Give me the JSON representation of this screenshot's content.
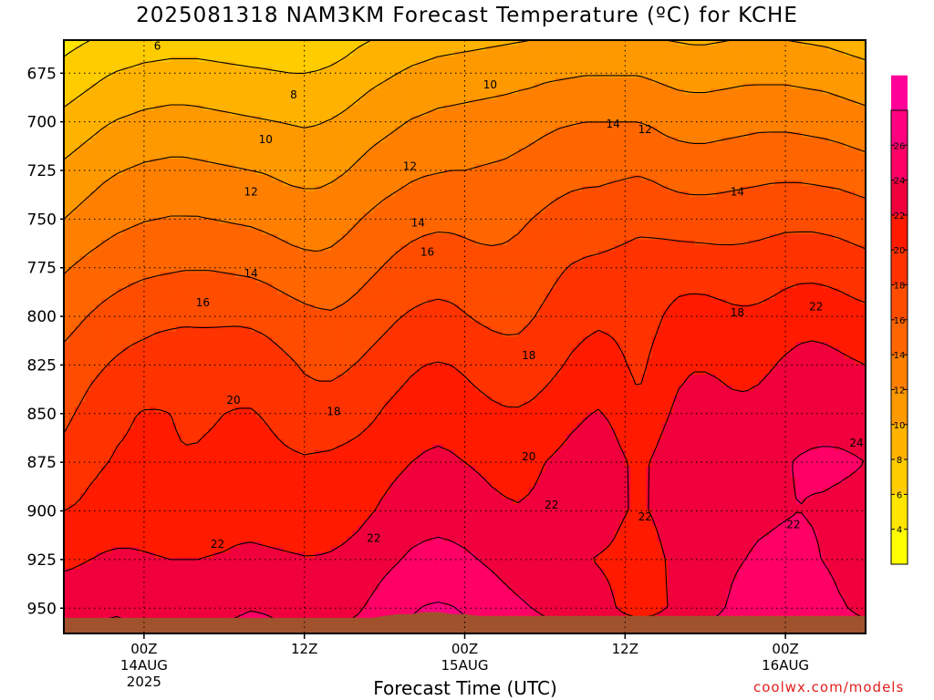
{
  "title": "2025081318 NAM3KM Forecast Temperature (ºC) for KCHE",
  "xlabel": "Forecast Time (UTC)",
  "credit": "coolwx.com/models",
  "colors": {
    "ground": "#a0522d",
    "contour": "#000000",
    "levels": [
      "#ffff00",
      "#ffe600",
      "#ffcc00",
      "#ffb300",
      "#ff9900",
      "#ff8000",
      "#ff6600",
      "#ff4d00",
      "#ff3300",
      "#ff1a00",
      "#f0003c",
      "#ff0066",
      "#ff0080",
      "#ff0099"
    ]
  },
  "chart_data": {
    "type": "heatmap",
    "title": "2025081318 NAM3KM Forecast Temperature (ºC) for KCHE",
    "xlabel": "Forecast Time (UTC)",
    "ylabel": "",
    "x_ticks": [
      {
        "label": "00Z",
        "sub": [
          "14AUG",
          "2025"
        ],
        "hour": 6
      },
      {
        "label": "12Z",
        "sub": [],
        "hour": 18
      },
      {
        "label": "00Z",
        "sub": [
          "15AUG"
        ],
        "hour": 30
      },
      {
        "label": "12Z",
        "sub": [],
        "hour": 42
      },
      {
        "label": "00Z",
        "sub": [
          "16AUG"
        ],
        "hour": 54
      }
    ],
    "xlim": [
      0,
      60
    ],
    "y_ticks": [
      675,
      700,
      725,
      750,
      775,
      800,
      825,
      850,
      875,
      900,
      925,
      950
    ],
    "ylim": [
      658,
      963
    ],
    "y_inverted": true,
    "colorbar_ticks": [
      4,
      6,
      8,
      10,
      12,
      14,
      16,
      18,
      20,
      22,
      24,
      26
    ],
    "colorbar_range": [
      2,
      28
    ],
    "contour_interval": 2,
    "contour_labels": [
      {
        "value": "6",
        "hour": 7,
        "p": 661
      },
      {
        "value": "8",
        "hour": 17.2,
        "p": 686
      },
      {
        "value": "10",
        "hour": 15.1,
        "p": 709
      },
      {
        "value": "10",
        "hour": 31.9,
        "p": 681
      },
      {
        "value": "12",
        "hour": 14,
        "p": 736
      },
      {
        "value": "12",
        "hour": 25.9,
        "p": 723
      },
      {
        "value": "12",
        "hour": 43.5,
        "p": 704
      },
      {
        "value": "14",
        "hour": 14,
        "p": 778
      },
      {
        "value": "14",
        "hour": 26.5,
        "p": 752
      },
      {
        "value": "14",
        "hour": 41.1,
        "p": 701
      },
      {
        "value": "14",
        "hour": 50.4,
        "p": 736
      },
      {
        "value": "16",
        "hour": 10.4,
        "p": 793
      },
      {
        "value": "16",
        "hour": 27.2,
        "p": 767
      },
      {
        "value": "18",
        "hour": 20.2,
        "p": 849
      },
      {
        "value": "18",
        "hour": 34.8,
        "p": 820
      },
      {
        "value": "18",
        "hour": 50.4,
        "p": 798
      },
      {
        "value": "20",
        "hour": 12.7,
        "p": 843
      },
      {
        "value": "20",
        "hour": 34.8,
        "p": 872
      },
      {
        "value": "22",
        "hour": 11.5,
        "p": 917
      },
      {
        "value": "22",
        "hour": 23.2,
        "p": 914
      },
      {
        "value": "22",
        "hour": 36.5,
        "p": 897
      },
      {
        "value": "22",
        "hour": 43.5,
        "p": 903
      },
      {
        "value": "22",
        "hour": 54.6,
        "p": 907
      },
      {
        "value": "22",
        "hour": 56.3,
        "p": 795
      },
      {
        "value": "24",
        "hour": 60,
        "p": 865
      }
    ],
    "series": [
      {
        "p": 963,
        "values": [
          24.0,
          24.0,
          24.3,
          24.5,
          24.6,
          24.4,
          24.2,
          24.1,
          24.0,
          24.0,
          24.0,
          24.1,
          24.3,
          24.6,
          24.8,
          24.7,
          24.4,
          24.2,
          24.1,
          24.0,
          24.1,
          24.3,
          24.6,
          25.0,
          25.6,
          26.0,
          26.4,
          26.7,
          26.9,
          26.8,
          26.5,
          26.1,
          25.7,
          25.4,
          25.1,
          24.9,
          24.6,
          24.3,
          24.1,
          24.0,
          23.8,
          23.6,
          23.4,
          23.3,
          23.4,
          23.6,
          23.8,
          24.0,
          24.3,
          24.6,
          24.9,
          25.2,
          25.5,
          25.8,
          26.0,
          26.0,
          25.7,
          25.3,
          24.9,
          24.6,
          24.4
        ]
      },
      {
        "p": 950,
        "values": [
          23.2,
          23.2,
          23.4,
          23.6,
          23.7,
          23.5,
          23.4,
          23.3,
          23.2,
          23.2,
          23.2,
          23.3,
          23.5,
          23.7,
          23.9,
          23.8,
          23.6,
          23.4,
          23.3,
          23.2,
          23.3,
          23.5,
          23.8,
          24.3,
          24.9,
          25.4,
          25.8,
          26.1,
          26.2,
          26.1,
          25.8,
          25.4,
          25.0,
          24.6,
          24.3,
          24.0,
          23.7,
          23.4,
          23.1,
          22.9,
          22.6,
          22.2,
          21.6,
          21.2,
          21.4,
          21.9,
          22.4,
          22.9,
          23.4,
          23.8,
          24.2,
          24.6,
          24.9,
          25.2,
          25.4,
          25.4,
          25.1,
          24.7,
          24.2,
          23.9,
          23.7
        ]
      },
      {
        "p": 925,
        "values": [
          21.6,
          21.8,
          22.0,
          22.2,
          22.3,
          22.3,
          22.2,
          22.1,
          22.0,
          22.0,
          22.0,
          22.1,
          22.2,
          22.4,
          22.5,
          22.4,
          22.3,
          22.2,
          22.1,
          22.1,
          22.2,
          22.4,
          22.7,
          23.1,
          23.5,
          23.9,
          24.3,
          24.5,
          24.6,
          24.5,
          24.3,
          24.0,
          23.7,
          23.4,
          23.1,
          22.9,
          22.7,
          22.5,
          22.3,
          22.1,
          21.9,
          21.7,
          21.2,
          20.8,
          21.3,
          22.0,
          22.6,
          23.0,
          23.3,
          23.5,
          23.8,
          24.0,
          24.2,
          24.3,
          24.4,
          24.4,
          24.2,
          23.9,
          23.6,
          23.4,
          23.2
        ]
      },
      {
        "p": 900,
        "values": [
          20.0,
          20.2,
          20.6,
          20.9,
          21.0,
          21.0,
          21.0,
          20.9,
          20.8,
          20.8,
          20.8,
          20.9,
          21.0,
          21.1,
          21.1,
          21.0,
          20.9,
          20.8,
          20.8,
          20.9,
          21.0,
          21.2,
          21.5,
          21.9,
          22.3,
          22.7,
          23.0,
          23.2,
          23.3,
          23.2,
          23.0,
          22.7,
          22.4,
          22.2,
          22.1,
          22.2,
          22.4,
          22.6,
          22.7,
          22.8,
          22.9,
          22.6,
          22.1,
          21.7,
          22.1,
          22.6,
          23.0,
          23.2,
          23.3,
          23.4,
          23.5,
          23.6,
          23.7,
          23.8,
          23.9,
          24.0,
          23.9,
          23.8,
          23.6,
          23.4,
          23.2
        ]
      },
      {
        "p": 875,
        "values": [
          18.6,
          19.0,
          19.5,
          19.9,
          20.2,
          20.3,
          20.4,
          20.3,
          20.2,
          20.1,
          20.2,
          20.4,
          20.6,
          20.7,
          20.7,
          20.6,
          20.4,
          20.3,
          20.2,
          20.3,
          20.4,
          20.6,
          20.8,
          21.1,
          21.4,
          21.7,
          22.0,
          22.2,
          22.3,
          22.2,
          22.0,
          21.8,
          21.6,
          21.5,
          21.5,
          21.7,
          22.0,
          22.3,
          22.6,
          22.8,
          22.9,
          22.6,
          22.1,
          21.6,
          22.1,
          22.7,
          23.1,
          23.3,
          23.3,
          23.2,
          23.1,
          23.1,
          23.3,
          23.6,
          23.9,
          24.1,
          24.2,
          24.3,
          24.3,
          24.2,
          24.0
        ]
      },
      {
        "p": 850,
        "values": [
          17.6,
          18.1,
          18.7,
          19.2,
          19.6,
          19.9,
          20.1,
          20.1,
          20.0,
          19.8,
          19.7,
          19.8,
          20.0,
          20.1,
          20.1,
          19.9,
          19.6,
          19.2,
          18.9,
          18.8,
          18.8,
          19.0,
          19.3,
          19.7,
          20.2,
          20.6,
          21.0,
          21.3,
          21.4,
          21.3,
          21.0,
          20.7,
          20.4,
          20.2,
          20.2,
          20.4,
          20.8,
          21.2,
          21.6,
          21.9,
          22.1,
          21.8,
          21.2,
          20.4,
          21.1,
          21.8,
          22.4,
          22.6,
          22.6,
          22.5,
          22.4,
          22.4,
          22.6,
          22.9,
          23.2,
          23.4,
          23.5,
          23.4,
          23.3,
          23.1,
          22.9
        ]
      },
      {
        "p": 825,
        "values": [
          16.6,
          17.0,
          17.5,
          17.9,
          18.3,
          18.6,
          18.8,
          19.0,
          19.1,
          19.1,
          19.0,
          19.0,
          19.1,
          19.2,
          19.2,
          19.0,
          18.6,
          18.2,
          17.8,
          17.6,
          17.6,
          17.8,
          18.1,
          18.5,
          18.9,
          19.3,
          19.7,
          20.0,
          20.1,
          20.0,
          19.7,
          19.3,
          19.0,
          18.8,
          18.7,
          18.9,
          19.3,
          19.8,
          20.3,
          20.7,
          21.0,
          20.7,
          20.1,
          19.5,
          20.3,
          21.0,
          21.6,
          21.9,
          21.9,
          21.8,
          21.6,
          21.5,
          21.6,
          21.9,
          22.3,
          22.6,
          22.7,
          22.6,
          22.4,
          22.2,
          22.0
        ]
      },
      {
        "p": 800,
        "values": [
          15.3,
          15.7,
          16.1,
          16.5,
          16.8,
          17.1,
          17.3,
          17.5,
          17.6,
          17.7,
          17.7,
          17.7,
          17.7,
          17.7,
          17.6,
          17.4,
          17.1,
          16.8,
          16.5,
          16.3,
          16.2,
          16.4,
          16.7,
          17.1,
          17.5,
          17.9,
          18.2,
          18.4,
          18.5,
          18.4,
          18.1,
          17.8,
          17.6,
          17.5,
          17.6,
          17.9,
          18.3,
          18.7,
          19.1,
          19.4,
          19.6,
          19.5,
          19.3,
          19.0,
          19.5,
          20.1,
          20.6,
          20.8,
          20.8,
          20.6,
          20.4,
          20.3,
          20.4,
          20.6,
          20.9,
          21.2,
          21.3,
          21.2,
          21.0,
          20.7,
          20.5
        ]
      },
      {
        "p": 775,
        "values": [
          13.8,
          14.2,
          14.6,
          14.9,
          15.2,
          15.4,
          15.6,
          15.7,
          15.8,
          15.9,
          15.9,
          15.9,
          15.8,
          15.7,
          15.6,
          15.4,
          15.1,
          14.8,
          14.6,
          14.5,
          14.6,
          14.9,
          15.3,
          15.7,
          16.1,
          16.5,
          16.8,
          17.0,
          17.1,
          17.0,
          16.8,
          16.6,
          16.5,
          16.5,
          16.7,
          17.0,
          17.4,
          17.8,
          18.1,
          18.3,
          18.4,
          18.5,
          18.6,
          18.7,
          18.8,
          19.0,
          19.1,
          19.1,
          19.0,
          18.9,
          18.8,
          18.8,
          18.9,
          19.1,
          19.3,
          19.4,
          19.4,
          19.3,
          19.1,
          18.9,
          18.7
        ]
      },
      {
        "p": 750,
        "values": [
          12.0,
          12.4,
          12.8,
          13.2,
          13.5,
          13.7,
          13.9,
          14.0,
          14.1,
          14.1,
          14.1,
          14.0,
          13.9,
          13.8,
          13.7,
          13.5,
          13.3,
          13.1,
          13.0,
          13.0,
          13.2,
          13.5,
          13.9,
          14.3,
          14.7,
          15.0,
          15.3,
          15.5,
          15.6,
          15.6,
          15.5,
          15.4,
          15.4,
          15.5,
          15.7,
          16.0,
          16.3,
          16.6,
          16.8,
          16.9,
          17.0,
          17.2,
          17.4,
          17.6,
          17.5,
          17.3,
          17.1,
          17.0,
          17.0,
          17.0,
          17.1,
          17.2,
          17.3,
          17.4,
          17.5,
          17.5,
          17.5,
          17.4,
          17.3,
          17.1,
          16.9
        ]
      },
      {
        "p": 725,
        "values": [
          10.4,
          10.8,
          11.2,
          11.6,
          11.9,
          12.1,
          12.3,
          12.4,
          12.5,
          12.5,
          12.4,
          12.3,
          12.2,
          12.1,
          12.0,
          11.9,
          11.7,
          11.5,
          11.4,
          11.4,
          11.6,
          11.9,
          12.3,
          12.7,
          13.0,
          13.3,
          13.6,
          13.8,
          13.9,
          14.0,
          14.0,
          14.1,
          14.2,
          14.3,
          14.5,
          14.7,
          15.0,
          15.2,
          15.4,
          15.5,
          15.5,
          15.6,
          15.7,
          15.8,
          15.6,
          15.3,
          15.1,
          15.0,
          15.0,
          15.1,
          15.2,
          15.3,
          15.4,
          15.5,
          15.5,
          15.5,
          15.4,
          15.3,
          15.2,
          15.0,
          14.8
        ]
      },
      {
        "p": 700,
        "values": [
          8.6,
          9.0,
          9.4,
          9.8,
          10.1,
          10.3,
          10.5,
          10.6,
          10.7,
          10.7,
          10.6,
          10.5,
          10.4,
          10.3,
          10.2,
          10.1,
          10.0,
          9.9,
          9.8,
          9.9,
          10.1,
          10.4,
          10.8,
          11.2,
          11.5,
          11.8,
          12.1,
          12.3,
          12.5,
          12.6,
          12.7,
          12.8,
          12.9,
          13.0,
          13.2,
          13.4,
          13.6,
          13.8,
          13.9,
          14.0,
          14.0,
          14.0,
          14.0,
          14.0,
          13.8,
          13.5,
          13.3,
          13.2,
          13.2,
          13.3,
          13.4,
          13.5,
          13.6,
          13.6,
          13.6,
          13.5,
          13.4,
          13.3,
          13.1,
          12.9,
          12.7
        ]
      },
      {
        "p": 675,
        "values": [
          6.6,
          7.0,
          7.4,
          7.8,
          8.1,
          8.3,
          8.5,
          8.6,
          8.7,
          8.7,
          8.7,
          8.6,
          8.5,
          8.4,
          8.3,
          8.2,
          8.1,
          8.0,
          8.0,
          8.1,
          8.3,
          8.6,
          9.0,
          9.4,
          9.7,
          10.0,
          10.3,
          10.5,
          10.7,
          10.8,
          10.9,
          11.0,
          11.1,
          11.2,
          11.3,
          11.4,
          11.6,
          11.7,
          11.8,
          11.9,
          11.9,
          11.9,
          11.9,
          11.9,
          11.7,
          11.5,
          11.3,
          11.2,
          11.2,
          11.3,
          11.4,
          11.5,
          11.5,
          11.5,
          11.5,
          11.4,
          11.3,
          11.2,
          11.0,
          10.8,
          10.6
        ]
      },
      {
        "p": 658,
        "values": [
          5.4,
          5.7,
          6.0,
          6.3,
          6.5,
          6.7,
          6.9,
          7.0,
          7.1,
          7.1,
          7.1,
          7.0,
          6.9,
          6.8,
          6.7,
          6.7,
          6.6,
          6.6,
          6.6,
          6.8,
          7.0,
          7.3,
          7.7,
          8.0,
          8.3,
          8.6,
          8.9,
          9.1,
          9.3,
          9.4,
          9.5,
          9.6,
          9.7,
          9.8,
          9.9,
          10.0,
          10.1,
          10.2,
          10.3,
          10.3,
          10.3,
          10.3,
          10.3,
          10.3,
          10.2,
          10.0,
          9.9,
          9.8,
          9.8,
          9.9,
          10.0,
          10.1,
          10.1,
          10.1,
          10.0,
          9.9,
          9.8,
          9.7,
          9.5,
          9.3,
          9.1
        ]
      }
    ],
    "ground_level_hpa": [
      955,
      955,
      955,
      955,
      955,
      955,
      955,
      955,
      955,
      955,
      955,
      955,
      955,
      955,
      955,
      955,
      955,
      955,
      955,
      955,
      955,
      955,
      955,
      955,
      954,
      953,
      953,
      952,
      952,
      953,
      953,
      954,
      954,
      954,
      954,
      954,
      954,
      954,
      954,
      954,
      954,
      954,
      954,
      954,
      954,
      954,
      954,
      954,
      954,
      954,
      954,
      954,
      954,
      954,
      954,
      954,
      954,
      954,
      954,
      954,
      954
    ]
  }
}
